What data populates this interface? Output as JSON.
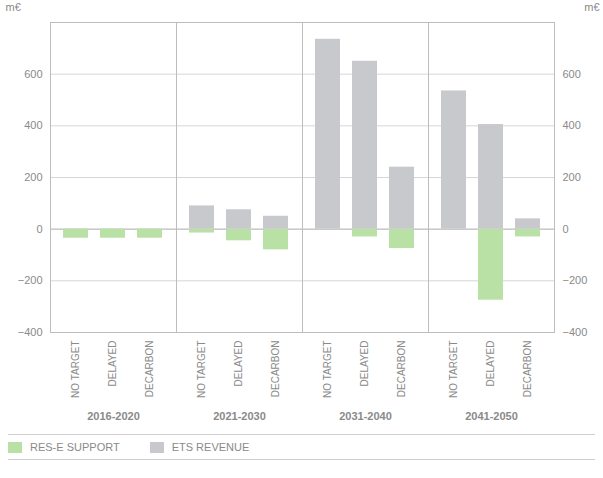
{
  "chart_data": {
    "type": "bar",
    "y_label": "m€",
    "groups": [
      "2016-2020",
      "2021-2030",
      "2031-2040",
      "2041-2050"
    ],
    "categories": [
      "NO TARGET",
      "DELAYED",
      "DECARBON",
      "NO TARGET",
      "DELAYED",
      "DECARBON",
      "NO TARGET",
      "DELAYED",
      "DECARBON",
      "NO TARGET",
      "DELAYED",
      "DECARBON"
    ],
    "series": [
      {
        "name": "RES-E SUPPORT",
        "color": "#b9e0a5",
        "values": [
          -35,
          -35,
          -35,
          -15,
          -45,
          -80,
          0,
          -30,
          -75,
          0,
          -275,
          -30
        ]
      },
      {
        "name": "ETS REVENUE",
        "color": "#c8c9cc",
        "values": [
          0,
          0,
          0,
          90,
          75,
          50,
          735,
          650,
          240,
          535,
          405,
          40
        ]
      }
    ],
    "ylim": [
      -400,
      800
    ],
    "yticks": [
      -400,
      -200,
      0,
      200,
      400,
      600
    ],
    "grid": true,
    "legend": "bottom"
  }
}
